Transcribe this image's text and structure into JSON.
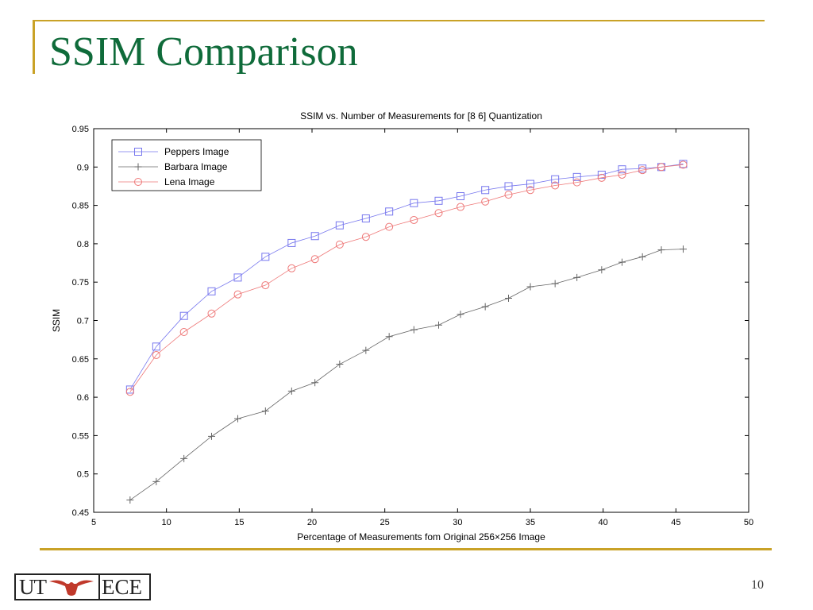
{
  "slide": {
    "title": "SSIM Comparison",
    "page_number": "10",
    "logo": {
      "left": "UT",
      "right": "ECE",
      "mascot": "longhorn-icon"
    }
  },
  "colors": {
    "title": "#0f6b3a",
    "rule": "#c9a227"
  },
  "chart_data": {
    "type": "line",
    "title": "SSIM vs. Number of Measurements for [8 6] Quantization",
    "xlabel": "Percentage of Measurements fom Original 256×256 Image",
    "ylabel": "SSIM",
    "xlim": [
      5,
      50
    ],
    "ylim": [
      0.45,
      0.95
    ],
    "xticks": [
      5,
      10,
      15,
      20,
      25,
      30,
      35,
      40,
      45,
      50
    ],
    "yticks": [
      0.45,
      0.5,
      0.55,
      0.6,
      0.65,
      0.7,
      0.75,
      0.8,
      0.85,
      0.9,
      0.95
    ],
    "grid": false,
    "legend_position": "top-left",
    "x": [
      7.5,
      9.3,
      11.2,
      13.1,
      14.9,
      16.8,
      18.6,
      20.2,
      21.9,
      23.7,
      25.3,
      27.0,
      28.7,
      30.2,
      31.9,
      33.5,
      35.0,
      36.7,
      38.2,
      39.9,
      41.3,
      42.7,
      44.0,
      45.5
    ],
    "series": [
      {
        "name": "Peppers Image",
        "color": "#7777ee",
        "marker": "square",
        "values": [
          0.61,
          0.666,
          0.706,
          0.738,
          0.756,
          0.783,
          0.801,
          0.81,
          0.824,
          0.833,
          0.842,
          0.853,
          0.856,
          0.862,
          0.87,
          0.875,
          0.878,
          0.884,
          0.887,
          0.89,
          0.897,
          0.898,
          0.9,
          0.904
        ]
      },
      {
        "name": "Barbara Image",
        "color": "#666666",
        "marker": "plus",
        "values": [
          0.466,
          0.49,
          0.52,
          0.549,
          0.572,
          0.582,
          0.608,
          0.619,
          0.643,
          0.661,
          0.679,
          0.688,
          0.694,
          0.708,
          0.718,
          0.729,
          0.744,
          0.748,
          0.756,
          0.766,
          0.776,
          0.783,
          0.792,
          0.793
        ]
      },
      {
        "name": "Lena Image",
        "color": "#ee7777",
        "marker": "circle",
        "values": [
          0.607,
          0.655,
          0.685,
          0.709,
          0.734,
          0.746,
          0.768,
          0.78,
          0.799,
          0.809,
          0.822,
          0.831,
          0.84,
          0.848,
          0.855,
          0.864,
          0.87,
          0.876,
          0.88,
          0.886,
          0.89,
          0.896,
          0.9,
          0.903
        ]
      }
    ]
  }
}
